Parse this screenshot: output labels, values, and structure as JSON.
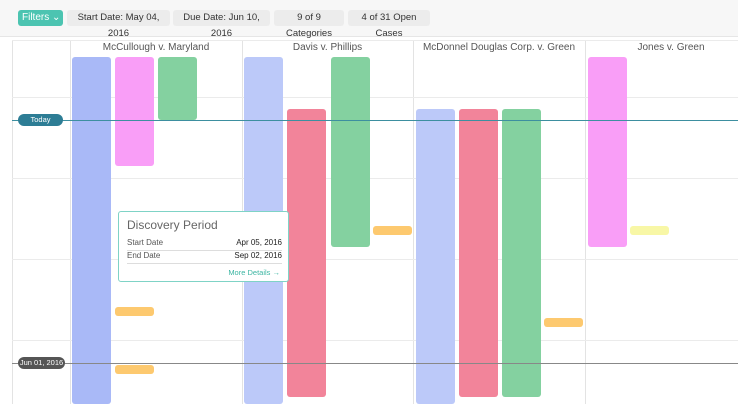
{
  "toolbar": {
    "filters": "Filters",
    "chips": [
      "Start Date: May 04, 2016",
      "Due Date: Jun 10, 2016",
      "9 of 9 Categories",
      "4 of 31 Open Cases"
    ]
  },
  "columns": [
    "McCullough v. Maryland",
    "Davis v. Phillips",
    "McDonnel Douglas Corp. v. Green",
    "Jones v. Green"
  ],
  "markers": {
    "today": "Today",
    "date": "Jun 01, 2016"
  },
  "popup": {
    "title": "Discovery Period",
    "rows": [
      [
        "Start Date",
        "Apr 05, 2016"
      ],
      [
        "End Date",
        "Sep 02, 2016"
      ]
    ],
    "link": "More Details →"
  }
}
